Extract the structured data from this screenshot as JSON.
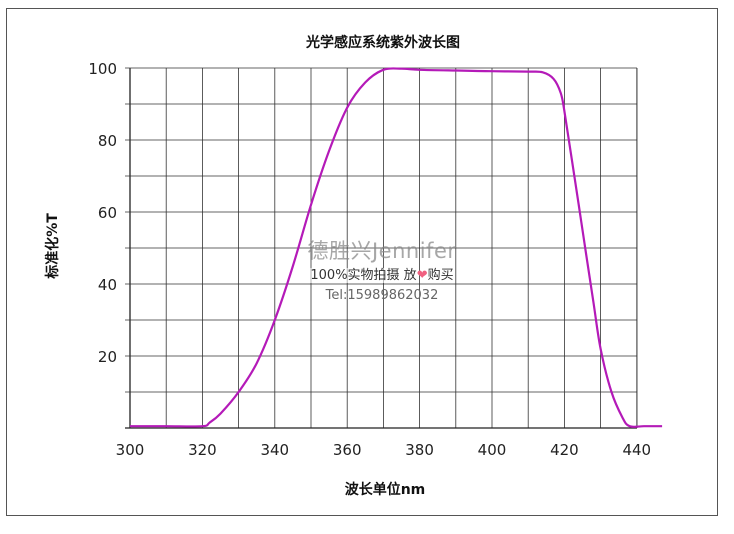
{
  "chart_data": {
    "type": "line",
    "title": "光学感应系统紫外波长图",
    "xlabel": "波长单位nm",
    "ylabel": "标准化%T",
    "xlim": [
      300,
      447
    ],
    "ylim": [
      0,
      100
    ],
    "xticks": [
      300,
      320,
      340,
      360,
      380,
      400,
      420,
      440
    ],
    "yticks": [
      20,
      40,
      60,
      80,
      100
    ],
    "grid": true,
    "line_color": "#b41ab8",
    "series": [
      {
        "points": [
          [
            300,
            0.5
          ],
          [
            310,
            0.5
          ],
          [
            320,
            0.5
          ],
          [
            322,
            1.5
          ],
          [
            325,
            4
          ],
          [
            330,
            10
          ],
          [
            335,
            18
          ],
          [
            340,
            30
          ],
          [
            345,
            45
          ],
          [
            350,
            62
          ],
          [
            355,
            77
          ],
          [
            360,
            89
          ],
          [
            365,
            96
          ],
          [
            370,
            99.5
          ],
          [
            375,
            99.8
          ],
          [
            380,
            99.5
          ],
          [
            390,
            99.3
          ],
          [
            400,
            99.1
          ],
          [
            410,
            99
          ],
          [
            414,
            98.8
          ],
          [
            417,
            97
          ],
          [
            419,
            93
          ],
          [
            420,
            88
          ],
          [
            422,
            75
          ],
          [
            425,
            55
          ],
          [
            428,
            35
          ],
          [
            430,
            22
          ],
          [
            433,
            10
          ],
          [
            436,
            3
          ],
          [
            438,
            0.5
          ],
          [
            442,
            0.5
          ],
          [
            447,
            0.5
          ]
        ]
      }
    ]
  },
  "watermark": {
    "brand": "德胜兴Jennifer",
    "line2_before": "100%实物拍摄  放",
    "heart": "❤",
    "line2_after": "购买",
    "tel": "Tel:15989862032"
  }
}
